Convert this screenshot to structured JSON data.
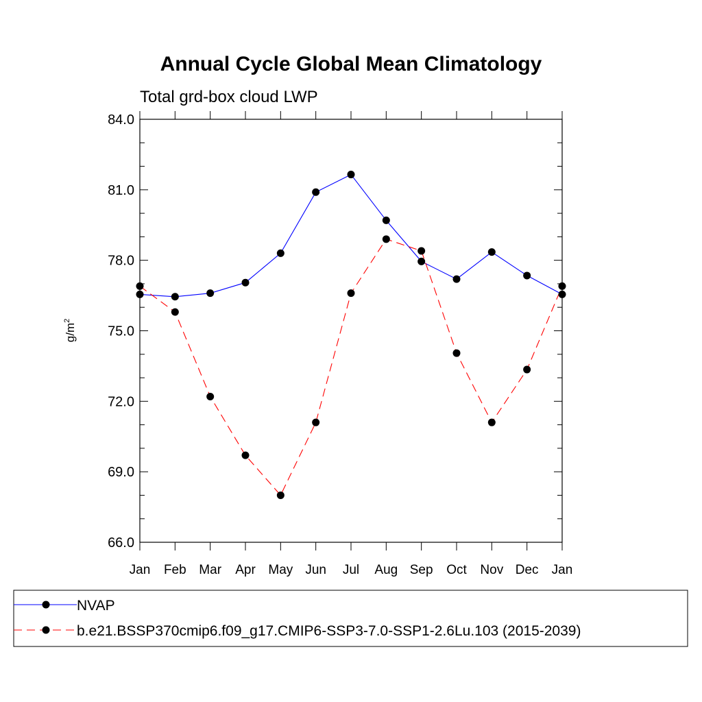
{
  "chart_data": {
    "type": "line",
    "title": "Annual Cycle Global Mean Climatology",
    "subtitle": "Total grd-box cloud LWP",
    "ylabel_base": "g/m",
    "ylabel_sup": "2",
    "ylim": [
      66.0,
      84.0
    ],
    "yticks": [
      "66.0",
      "69.0",
      "72.0",
      "75.0",
      "78.0",
      "81.0",
      "84.0"
    ],
    "categories": [
      "Jan",
      "Feb",
      "Mar",
      "Apr",
      "May",
      "Jun",
      "Jul",
      "Aug",
      "Sep",
      "Oct",
      "Nov",
      "Dec",
      "Jan"
    ],
    "series": [
      {
        "name": "NVAP",
        "color": "#0000ff",
        "dash": "solid",
        "values": [
          76.55,
          76.45,
          76.6,
          77.05,
          78.3,
          80.9,
          81.65,
          79.7,
          77.95,
          77.2,
          78.35,
          77.35,
          76.55
        ]
      },
      {
        "name": "b.e21.BSSP370cmip6.f09_g17.CMIP6-SSP3-7.0-SSP1-2.6Lu.103 (2015-2039)",
        "color": "#ff0000",
        "dash": "dashed",
        "values": [
          76.9,
          75.8,
          72.2,
          69.7,
          68.0,
          71.1,
          76.6,
          78.9,
          78.4,
          74.05,
          71.1,
          73.35,
          76.9
        ]
      }
    ],
    "grid": false,
    "legend_position": "bottom"
  }
}
